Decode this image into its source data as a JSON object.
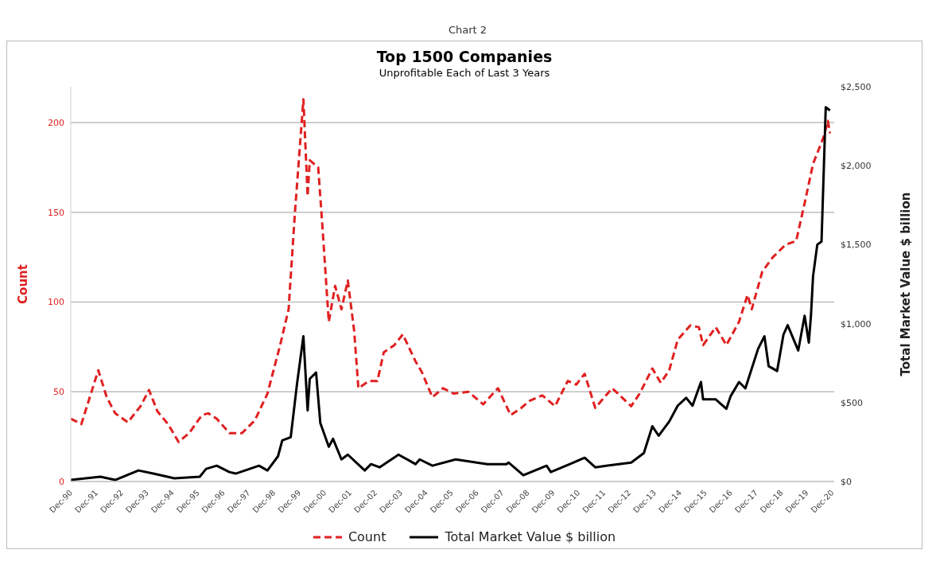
{
  "chart_data": {
    "type": "line",
    "title": "Top 1500 Companies",
    "subtitle": "Unprofitable Each of Last 3 Years",
    "annotations": [
      "Chart 2"
    ],
    "ylabel": "Count",
    "y2label": "Total Market Value $ billion",
    "ylim": [
      0,
      220
    ],
    "yticks": [
      0,
      50,
      100,
      150,
      200
    ],
    "y2lim": [
      0,
      2500
    ],
    "y2ticks": [
      {
        "value": 0,
        "label": "$0"
      },
      {
        "value": 500,
        "label": "$500"
      },
      {
        "value": 1000,
        "label": "$1,000"
      },
      {
        "value": 1500,
        "label": "$1,500"
      },
      {
        "value": 2000,
        "label": "$2,000"
      },
      {
        "value": 2500,
        "label": "$2,500"
      }
    ],
    "xlim": [
      "1990-12",
      "2021-01"
    ],
    "xticks": [
      {
        "value": "1990-12",
        "label": "Dec-90"
      },
      {
        "value": "1991-12",
        "label": "Dec-91"
      },
      {
        "value": "1992-12",
        "label": "Dec-92"
      },
      {
        "value": "1993-12",
        "label": "Dec-93"
      },
      {
        "value": "1994-12",
        "label": "Dec-94"
      },
      {
        "value": "1995-12",
        "label": "Dec-95"
      },
      {
        "value": "1996-12",
        "label": "Dec-96"
      },
      {
        "value": "1997-12",
        "label": "Dec-97"
      },
      {
        "value": "1998-12",
        "label": "Dec-98"
      },
      {
        "value": "1999-12",
        "label": "Dec-99"
      },
      {
        "value": "2000-12",
        "label": "Dec-00"
      },
      {
        "value": "2001-12",
        "label": "Dec-01"
      },
      {
        "value": "2002-12",
        "label": "Dec-02"
      },
      {
        "value": "2003-12",
        "label": "Dec-03"
      },
      {
        "value": "2004-12",
        "label": "Dec-04"
      },
      {
        "value": "2005-12",
        "label": "Dec-05"
      },
      {
        "value": "2006-12",
        "label": "Dec-06"
      },
      {
        "value": "2007-12",
        "label": "Dec-07"
      },
      {
        "value": "2008-12",
        "label": "Dec-08"
      },
      {
        "value": "2009-12",
        "label": "Dec-09"
      },
      {
        "value": "2010-12",
        "label": "Dec-10"
      },
      {
        "value": "2011-12",
        "label": "Dec-11"
      },
      {
        "value": "2012-12",
        "label": "Dec-12"
      },
      {
        "value": "2013-12",
        "label": "Dec-13"
      },
      {
        "value": "2014-12",
        "label": "Dec-14"
      },
      {
        "value": "2015-12",
        "label": "Dec-15"
      },
      {
        "value": "2016-12",
        "label": "Dec-16"
      },
      {
        "value": "2017-12",
        "label": "Dec-17"
      },
      {
        "value": "2018-12",
        "label": "Dec-18"
      },
      {
        "value": "2019-12",
        "label": "Dec-19"
      },
      {
        "value": "2020-12",
        "label": "Dec-20"
      }
    ],
    "grid": "y",
    "legend": "bottom",
    "marker": "none",
    "series": [
      {
        "name": "Count",
        "color": "#e02020",
        "line_style": "dashed",
        "x": [
          "1990-12",
          "1991-05",
          "1991-09",
          "1992-01",
          "1992-05",
          "1992-09",
          "1993-03",
          "1993-09",
          "1994-01",
          "1994-05",
          "1994-10",
          "1995-03",
          "1995-08",
          "1996-02",
          "1996-05",
          "1996-09",
          "1997-03",
          "1997-09",
          "1998-03",
          "1998-09",
          "1999-03",
          "1999-07",
          "1999-10",
          "2000-02",
          "2000-04",
          "2000-05",
          "2000-09",
          "2000-11",
          "2001-02",
          "2001-05",
          "2001-08",
          "2001-11",
          "2002-02",
          "2002-04",
          "2002-09",
          "2003-01",
          "2003-04",
          "2003-09",
          "2004-01",
          "2004-07",
          "2004-10",
          "2005-03",
          "2005-08",
          "2006-01",
          "2006-08",
          "2007-03",
          "2007-10",
          "2008-04",
          "2008-09",
          "2009-01",
          "2009-07",
          "2010-01",
          "2010-07",
          "2010-11",
          "2011-03",
          "2011-08",
          "2012-04",
          "2013-01",
          "2013-05",
          "2013-11",
          "2014-03",
          "2014-07",
          "2014-11",
          "2015-05",
          "2015-09",
          "2015-11",
          "2016-05",
          "2016-10",
          "2017-04",
          "2017-08",
          "2017-10",
          "2018-03",
          "2018-08",
          "2019-02",
          "2019-07",
          "2019-11",
          "2020-03",
          "2020-08",
          "2020-10",
          "2020-11"
        ],
        "values": [
          35,
          32,
          47,
          62,
          47,
          38,
          33,
          42,
          51,
          39,
          32,
          22,
          27,
          37,
          38,
          35,
          27,
          27,
          34,
          49,
          76,
          96,
          150,
          213,
          159,
          179,
          175,
          142,
          89,
          109,
          96,
          112,
          84,
          52,
          56,
          56,
          72,
          76,
          82,
          67,
          61,
          47,
          52,
          49,
          50,
          43,
          52,
          37,
          41,
          45,
          48,
          42,
          56,
          54,
          60,
          41,
          52,
          42,
          49,
          63,
          55,
          62,
          79,
          87,
          86,
          76,
          86,
          76,
          89,
          104,
          96,
          117,
          125,
          132,
          134,
          155,
          177,
          192,
          201,
          194
        ]
      },
      {
        "name": "Total Market Value $ billion",
        "color": "#000000",
        "line_style": "solid",
        "axis": "y2",
        "x": [
          "1990-12",
          "1992-02",
          "1992-09",
          "1993-08",
          "1994-03",
          "1995-01",
          "1996-01",
          "1996-04",
          "1996-09",
          "1997-03",
          "1997-06",
          "1998-05",
          "1998-09",
          "1999-02",
          "1999-04",
          "1999-08",
          "1999-11",
          "2000-02",
          "2000-04",
          "2000-05",
          "2000-08",
          "2000-10",
          "2001-02",
          "2001-04",
          "2001-08",
          "2001-11",
          "2002-07",
          "2002-10",
          "2003-02",
          "2003-11",
          "2004-07",
          "2004-09",
          "2005-03",
          "2006-02",
          "2007-05",
          "2008-02",
          "2008-03",
          "2008-10",
          "2009-09",
          "2009-11",
          "2010-08",
          "2011-03",
          "2011-08",
          "2012-07",
          "2013-01",
          "2013-07",
          "2013-11",
          "2014-02",
          "2014-07",
          "2014-11",
          "2015-03",
          "2015-06",
          "2015-10",
          "2015-11",
          "2016-05",
          "2016-10",
          "2016-12",
          "2017-04",
          "2017-07",
          "2018-01",
          "2018-04",
          "2018-06",
          "2018-10",
          "2019-01",
          "2019-03",
          "2019-08",
          "2019-11",
          "2020-01",
          "2020-02",
          "2020-03",
          "2020-05",
          "2020-07",
          "2020-09",
          "2020-11"
        ],
        "values": [
          10,
          30,
          10,
          70,
          50,
          20,
          30,
          80,
          100,
          60,
          50,
          100,
          70,
          160,
          260,
          280,
          620,
          920,
          450,
          650,
          690,
          370,
          220,
          270,
          140,
          170,
          70,
          110,
          90,
          170,
          110,
          140,
          100,
          140,
          110,
          110,
          120,
          40,
          100,
          60,
          110,
          150,
          90,
          110,
          120,
          180,
          350,
          290,
          380,
          480,
          530,
          480,
          630,
          520,
          520,
          460,
          540,
          630,
          590,
          840,
          920,
          730,
          700,
          930,
          990,
          830,
          1050,
          880,
          1050,
          1300,
          1500,
          1520,
          2370,
          2350
        ]
      }
    ]
  }
}
